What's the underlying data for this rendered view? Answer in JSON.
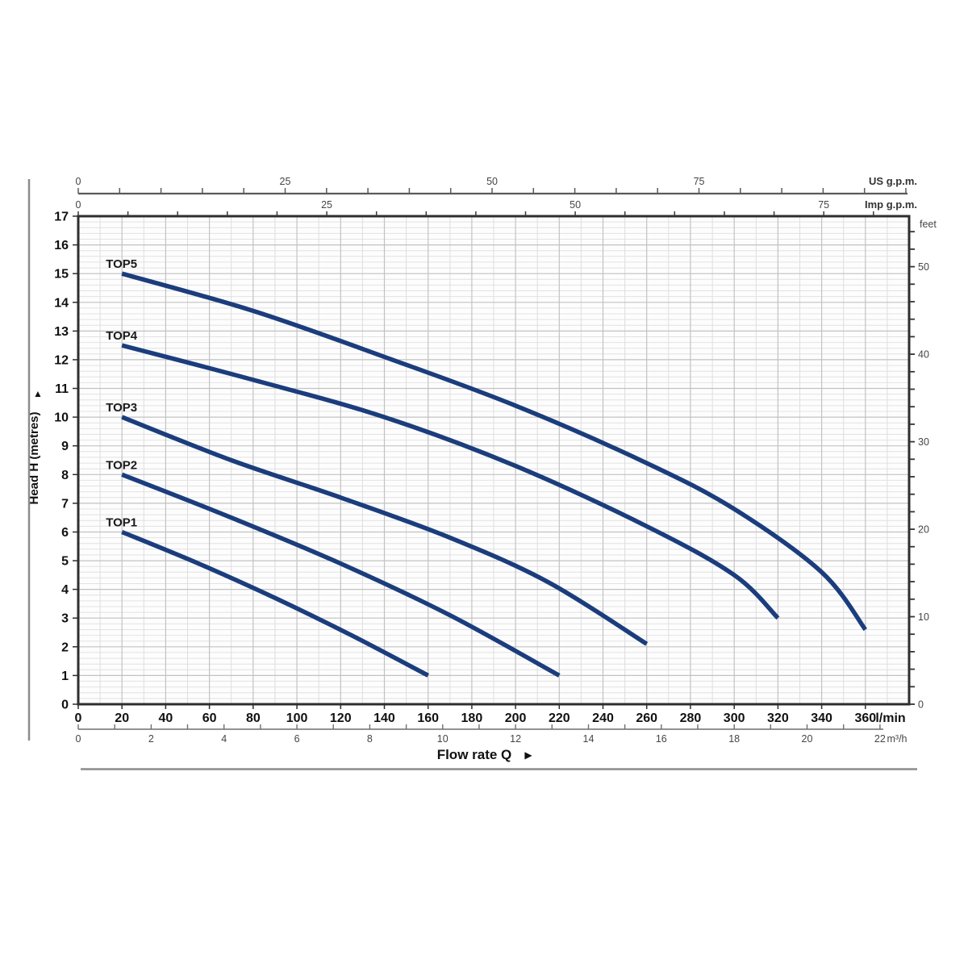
{
  "page": {
    "background": "#ffffff"
  },
  "chart_data": {
    "type": "line",
    "title": "",
    "xlabel": "Flow rate Q",
    "xlabel_arrow": "▶",
    "ylabel": "Head H (metres)",
    "ylabel_arrow": "▲",
    "axes": {
      "x_lmin": {
        "unit": "l/min",
        "min": 0,
        "max": 380,
        "labels": [
          0,
          20,
          40,
          60,
          80,
          100,
          120,
          140,
          160,
          180,
          200,
          220,
          240,
          260,
          280,
          300,
          320,
          340,
          360
        ]
      },
      "x_m3h": {
        "unit": "m³/h",
        "tick_step": 1,
        "max": 22,
        "labels": [
          0,
          2,
          4,
          6,
          8,
          10,
          12,
          14,
          16,
          18,
          20,
          22
        ]
      },
      "x_us_gpm": {
        "unit": "US g.p.m.",
        "tick_step": 5,
        "labels": [
          0,
          25,
          50,
          75
        ]
      },
      "x_imp_gpm": {
        "unit": "Imp g.p.m.",
        "tick_step": 5,
        "labels": [
          0,
          25,
          50,
          75
        ]
      },
      "y_metres": {
        "unit": "metres",
        "min": 0,
        "max": 17,
        "labels": [
          0,
          1,
          2,
          3,
          4,
          5,
          6,
          7,
          8,
          9,
          10,
          11,
          12,
          13,
          14,
          15,
          16,
          17
        ]
      },
      "y_feet": {
        "unit": "feet",
        "tick_step": 2,
        "max": 54,
        "labels": [
          0,
          10,
          20,
          30,
          40,
          50
        ]
      }
    },
    "grid": {
      "x_minor_step_lmin": 10,
      "x_major_step_lmin": 20,
      "y_minor_step_m": 0.2,
      "y_major_step_m": 1,
      "grid_on": true
    },
    "series": [
      {
        "name": "TOP1",
        "points_lmin_m": [
          [
            20,
            6.0
          ],
          [
            55,
            4.9
          ],
          [
            90,
            3.7
          ],
          [
            125,
            2.4
          ],
          [
            160,
            1.0
          ]
        ]
      },
      {
        "name": "TOP2",
        "points_lmin_m": [
          [
            20,
            8.0
          ],
          [
            70,
            6.5
          ],
          [
            120,
            4.9
          ],
          [
            170,
            3.1
          ],
          [
            220,
            1.0
          ]
        ]
      },
      {
        "name": "TOP3",
        "points_lmin_m": [
          [
            20,
            10.0
          ],
          [
            70,
            8.5
          ],
          [
            120,
            7.2
          ],
          [
            170,
            5.8
          ],
          [
            215,
            4.25
          ],
          [
            260,
            2.1
          ]
        ]
      },
      {
        "name": "TOP4",
        "points_lmin_m": [
          [
            20,
            12.5
          ],
          [
            80,
            11.3
          ],
          [
            140,
            10.0
          ],
          [
            200,
            8.3
          ],
          [
            260,
            6.2
          ],
          [
            300,
            4.5
          ],
          [
            320,
            3.0
          ]
        ]
      },
      {
        "name": "TOP5",
        "points_lmin_m": [
          [
            20,
            15.0
          ],
          [
            80,
            13.7
          ],
          [
            140,
            12.1
          ],
          [
            200,
            10.4
          ],
          [
            260,
            8.4
          ],
          [
            300,
            6.8
          ],
          [
            340,
            4.6
          ],
          [
            360,
            2.6
          ]
        ]
      }
    ],
    "colors": {
      "curve": "#1b3d7d",
      "plot_bg": "#fdfdfd",
      "grid_minor_h": "#e2e2e2",
      "grid_minor_v": "#dedede",
      "grid_major": "#c2c2c2",
      "plot_border": "#2e2e2e",
      "axis_line": "#5a5a5a",
      "frame_gray": "#8c8c8c",
      "text_dark": "#111111",
      "text_gray": "#454545"
    }
  }
}
